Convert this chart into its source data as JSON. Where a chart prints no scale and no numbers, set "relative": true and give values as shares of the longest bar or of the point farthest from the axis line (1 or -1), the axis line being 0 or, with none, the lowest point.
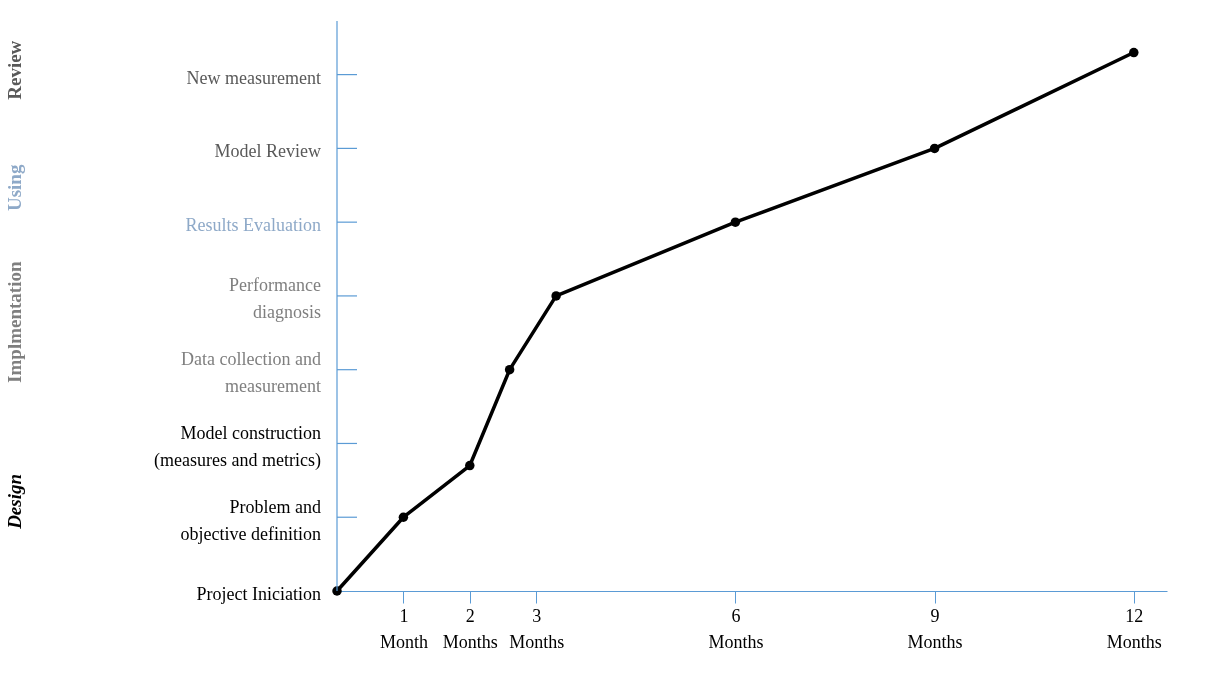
{
  "chart_data": {
    "type": "line",
    "relative": true,
    "x": [
      0,
      1,
      2,
      2.6,
      3.3,
      6,
      9,
      12
    ],
    "series": [
      {
        "color": "#000000",
        "values": [
          0,
          0.137,
          0.233,
          0.411,
          0.548,
          0.685,
          0.822,
          1
        ]
      }
    ],
    "xlim": [
      0,
      12.5
    ],
    "xticks": [
      {
        "value": 1,
        "label": "1\nMonth"
      },
      {
        "value": 2,
        "label": "2\nMonths"
      },
      {
        "value": 3,
        "label": "3\nMonths"
      },
      {
        "value": 6,
        "label": "6\nMonths"
      },
      {
        "value": 9,
        "label": "9\nMonths"
      },
      {
        "value": 12,
        "label": "12\nMonths"
      }
    ],
    "annotations": [
      "Review",
      "Using",
      "Implmentation",
      "Design",
      "Project Iniciation",
      "Problem and\nobjective definition",
      "Model construction\n(measures and metrics)",
      "Data collection and\nmeasurement",
      "Performance\ndiagnosis",
      "Results Evaluation",
      "Model Review",
      "New measurement"
    ],
    "grid": false,
    "marker": "circle",
    "line_style": "solid"
  }
}
